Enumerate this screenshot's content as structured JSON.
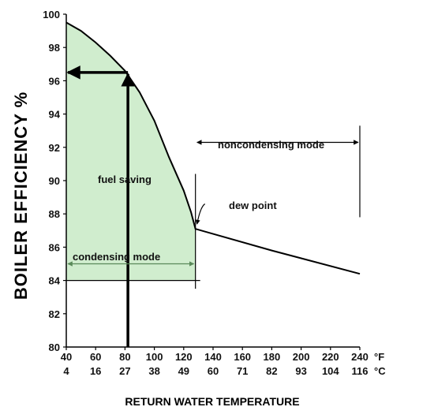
{
  "chart_data": {
    "type": "line",
    "ylabel": "BOILER EFFICIENCY %",
    "xlabel": "RETURN WATER TEMPERATURE",
    "ylim": [
      80,
      100
    ],
    "yticks": [
      80,
      82,
      84,
      86,
      88,
      90,
      92,
      94,
      96,
      98,
      100
    ],
    "xlim": [
      40,
      240
    ],
    "xticks_f": [
      40,
      60,
      80,
      100,
      120,
      140,
      160,
      180,
      200,
      220,
      240
    ],
    "xticks_c": [
      4,
      16,
      27,
      38,
      49,
      60,
      71,
      82,
      93,
      104,
      116
    ],
    "unit_f": "°F",
    "unit_c": "°C",
    "series": [
      {
        "x": [
          40,
          50,
          60,
          70,
          80,
          90,
          100,
          110,
          120,
          125,
          128,
          180,
          240
        ],
        "values": [
          99.5,
          99.0,
          98.3,
          97.5,
          96.6,
          95.3,
          93.6,
          91.4,
          89.4,
          88.1,
          87.1,
          85.8,
          84.4
        ]
      }
    ],
    "condensing_region": {
      "x": [
        40,
        128
      ],
      "fill": "#d0edce"
    },
    "fuel_saving_arrow": {
      "x": 82,
      "y": 96.5
    },
    "dew_point": {
      "x": 128,
      "y": 87.1
    },
    "annotations": {
      "fuel_saving": "fuel saving",
      "dew_point": "dew point",
      "condensing_mode": "condensing mode",
      "noncondensing_mode": "noncondensing mode"
    },
    "mode_ranges": {
      "condensing": [
        40,
        128
      ],
      "noncondensing": [
        128,
        240
      ]
    },
    "grid": false
  }
}
